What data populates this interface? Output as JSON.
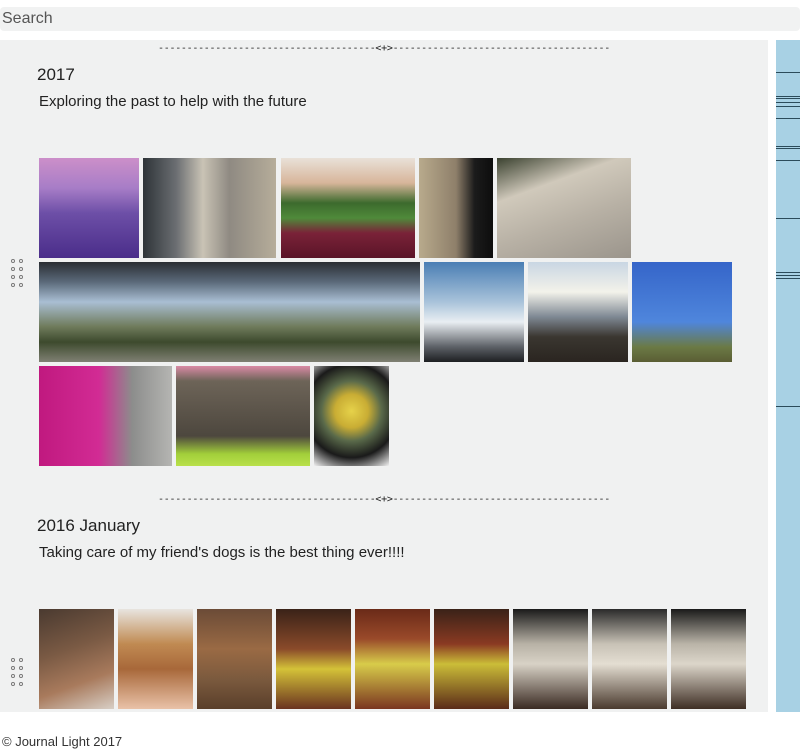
{
  "search": {
    "placeholder": "Search"
  },
  "divider_text": "--------------------------------------<+>--------------------------------------",
  "entries": [
    {
      "title": "2017",
      "text": "Exploring the past to help with the future",
      "photos": [
        "sunset-over-water",
        "street-mural-wall",
        "planter-box-plants",
        "window-frame",
        "painted-pavement",
        "pergola-panorama",
        "cloudy-sky",
        "ocean-sunlight",
        "kite-in-sky",
        "pink-bougainvillea",
        "framed-artwork",
        "citrus-bowl"
      ]
    },
    {
      "title": "2016 January",
      "text": "Taking care of my friend's dogs is the best thing ever!!!!",
      "photos": [
        "dog-photo-1",
        "dog-photo-2",
        "dog-photo-3",
        "dog-photo-4",
        "dog-photo-5",
        "dog-photo-6",
        "dog-photo-7",
        "dog-photo-8",
        "dog-photo-9"
      ]
    }
  ],
  "footer": "© Journal Light 2017"
}
